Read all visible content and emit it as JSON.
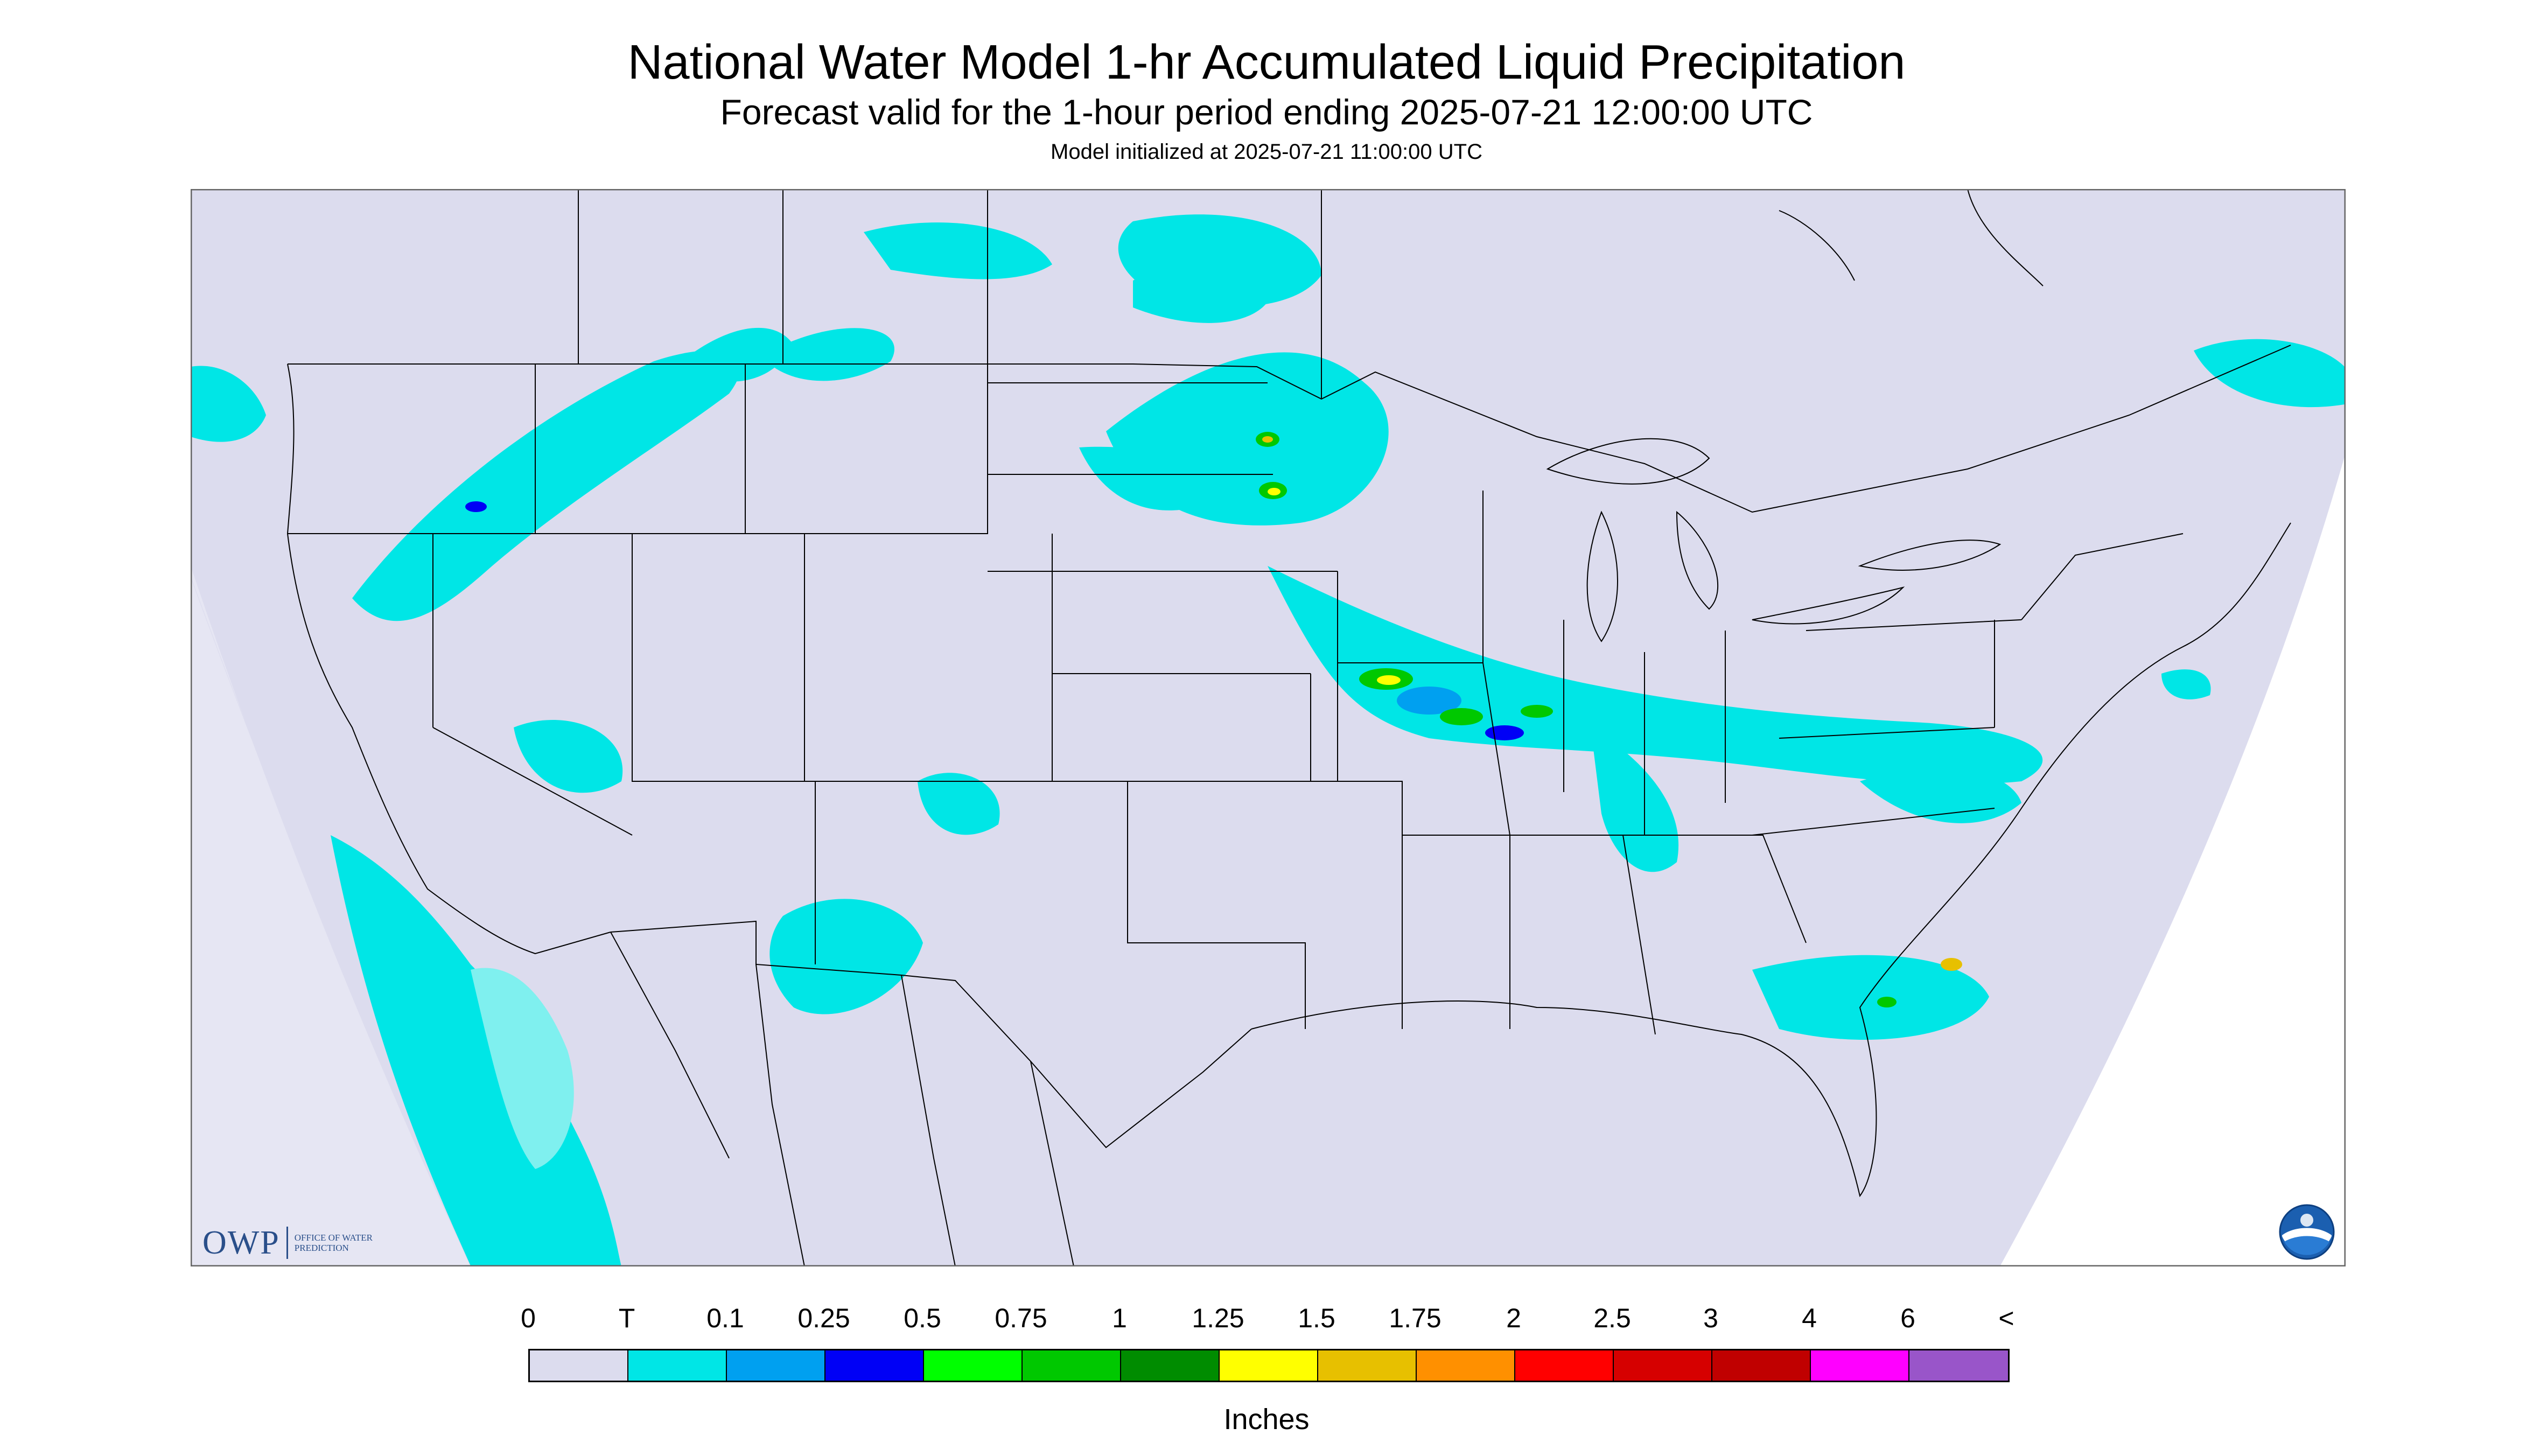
{
  "title": "National Water Model 1-hr Accumulated Liquid Precipitation",
  "subtitle": "Forecast valid for the 1-hour period ending 2025-07-21 12:00:00 UTC",
  "init_line": "Model initialized at 2025-07-21 11:00:00 UTC",
  "legend": {
    "ticks": [
      "0",
      "T",
      "0.1",
      "0.25",
      "0.5",
      "0.75",
      "1",
      "1.25",
      "1.5",
      "1.75",
      "2",
      "2.5",
      "3",
      "4",
      "6",
      "<"
    ],
    "colors": [
      "#dcdcee",
      "#00e6e6",
      "#00a0f0",
      "#0000f6",
      "#00ff00",
      "#00c800",
      "#008c00",
      "#ffff00",
      "#e7c000",
      "#ff9000",
      "#ff0000",
      "#d60000",
      "#c00000",
      "#ff00ff",
      "#9955c9"
    ],
    "units": "Inches"
  },
  "logos": {
    "owp_mark": "OWP",
    "owp_text": "Office of Water Prediction",
    "noaa": "NOAA"
  },
  "map": {
    "background_color": "#dcdcee",
    "outside_color": "#ffffff",
    "boundary_color": "#000000"
  }
}
